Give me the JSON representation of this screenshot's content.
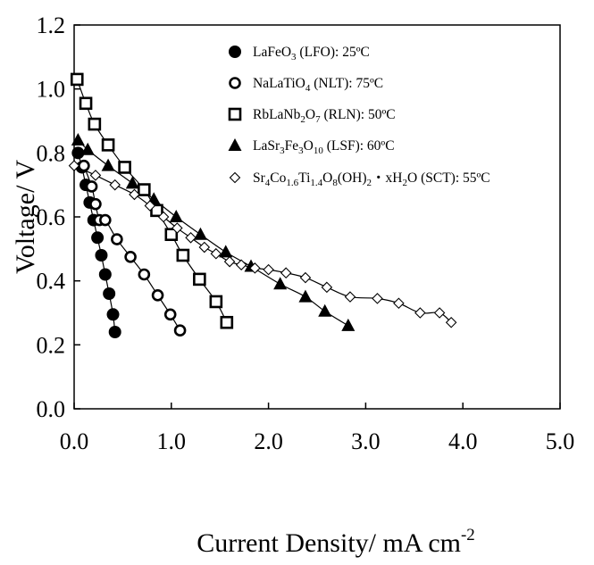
{
  "chart_data": {
    "type": "scatter",
    "title": "",
    "xlabel": "Current Density/ mA cm",
    "xlabel_sup": "-2",
    "ylabel": "Voltage/ V",
    "xlim": [
      0,
      5
    ],
    "ylim": [
      0,
      1.2
    ],
    "x_ticks": [
      "0.0",
      "1.0",
      "2.0",
      "3.0",
      "4.0",
      "5.0"
    ],
    "y_ticks": [
      "0.0",
      "0.2",
      "0.4",
      "0.6",
      "0.8",
      "1.0",
      "1.2"
    ],
    "grid": false,
    "legend_position": "top-right",
    "series": [
      {
        "name": "LaFeO3 (LFO): 25ºC",
        "legend": [
          {
            "t": "LaFeO"
          },
          {
            "t": "3",
            "sub": true
          },
          {
            "t": " (LFO): 25ºC"
          }
        ],
        "marker": "filled-circle",
        "x": [
          0.04,
          0.08,
          0.12,
          0.16,
          0.2,
          0.24,
          0.28,
          0.32,
          0.36,
          0.4,
          0.42
        ],
        "y": [
          0.8,
          0.755,
          0.7,
          0.645,
          0.59,
          0.535,
          0.48,
          0.42,
          0.36,
          0.295,
          0.24
        ]
      },
      {
        "name": "NaLaTiO4 (NLT): 75ºC",
        "legend": [
          {
            "t": "NaLaTiO"
          },
          {
            "t": "4",
            "sub": true
          },
          {
            "t": " (NLT): 75ºC"
          }
        ],
        "marker": "open-circle",
        "x": [
          0.1,
          0.18,
          0.22,
          0.26,
          0.32,
          0.44,
          0.58,
          0.72,
          0.86,
          0.99,
          1.09
        ],
        "y": [
          0.76,
          0.695,
          0.64,
          0.59,
          0.59,
          0.53,
          0.475,
          0.42,
          0.355,
          0.295,
          0.245
        ]
      },
      {
        "name": "RbLaNb2O7 (RLN): 50ºC",
        "legend": [
          {
            "t": "RbLaNb"
          },
          {
            "t": "2",
            "sub": true
          },
          {
            "t": "O"
          },
          {
            "t": "7",
            "sub": true
          },
          {
            "t": " (RLN): 50ºC"
          }
        ],
        "marker": "open-square",
        "x": [
          0.03,
          0.12,
          0.21,
          0.35,
          0.52,
          0.72,
          0.85,
          1.0,
          1.12,
          1.29,
          1.46,
          1.57
        ],
        "y": [
          1.03,
          0.955,
          0.89,
          0.825,
          0.755,
          0.685,
          0.62,
          0.545,
          0.48,
          0.405,
          0.335,
          0.27
        ]
      },
      {
        "name": "LaSr3Fe3O10 (LSF): 60ºC",
        "legend": [
          {
            "t": "LaSr"
          },
          {
            "t": "3",
            "sub": true
          },
          {
            "t": "Fe"
          },
          {
            "t": "3",
            "sub": true
          },
          {
            "t": "O"
          },
          {
            "t": "10",
            "sub": true
          },
          {
            "t": " (LSF): 60ºC"
          }
        ],
        "marker": "filled-triangle",
        "x": [
          0.04,
          0.14,
          0.35,
          0.6,
          0.82,
          1.05,
          1.3,
          1.56,
          1.82,
          2.12,
          2.38,
          2.58,
          2.82
        ],
        "y": [
          0.84,
          0.81,
          0.76,
          0.705,
          0.655,
          0.6,
          0.545,
          0.49,
          0.445,
          0.39,
          0.35,
          0.305,
          0.26
        ]
      },
      {
        "name": "Sr4Co1.6Ti1.4O8(OH)2・xH2O (SCT): 55ºC",
        "legend": [
          {
            "t": "Sr"
          },
          {
            "t": "4",
            "sub": true
          },
          {
            "t": "Co"
          },
          {
            "t": "1.6",
            "sub": true
          },
          {
            "t": "Ti"
          },
          {
            "t": "1.4",
            "sub": true
          },
          {
            "t": "O"
          },
          {
            "t": "8",
            "sub": true
          },
          {
            "t": "(OH)"
          },
          {
            "t": "2",
            "sub": true
          },
          {
            "t": "・xH"
          },
          {
            "t": "2",
            "sub": true
          },
          {
            "t": "O (SCT): 55ºC"
          }
        ],
        "marker": "open-diamond",
        "x": [
          0.0,
          0.22,
          0.42,
          0.62,
          0.78,
          0.92,
          1.06,
          1.2,
          1.34,
          1.46,
          1.6,
          1.72,
          1.86,
          2.0,
          2.18,
          2.38,
          2.6,
          2.84,
          3.12,
          3.34,
          3.56,
          3.76,
          3.88
        ],
        "y": [
          0.76,
          0.73,
          0.7,
          0.67,
          0.635,
          0.6,
          0.565,
          0.535,
          0.505,
          0.485,
          0.46,
          0.45,
          0.44,
          0.435,
          0.425,
          0.41,
          0.38,
          0.35,
          0.345,
          0.33,
          0.3,
          0.3,
          0.27
        ]
      }
    ]
  }
}
